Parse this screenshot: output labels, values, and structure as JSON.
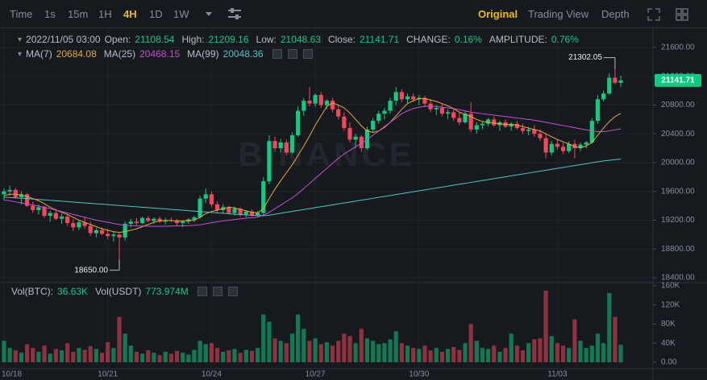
{
  "toolbar": {
    "intervals": [
      "Time",
      "1s",
      "15m",
      "1H",
      "4H",
      "1D",
      "1W"
    ],
    "active": "4H",
    "views": [
      "Original",
      "Trading View",
      "Depth"
    ],
    "active_view": "Original"
  },
  "chart_data": {
    "type": "candlestick",
    "watermark": "BINANCE",
    "up_color": "#0ecb81",
    "down_color": "#f6465d",
    "info": {
      "time": "2022/11/05 03:00",
      "fields": [
        {
          "name": "Open:",
          "value": 21108.54
        },
        {
          "name": "High:",
          "value": 21209.16
        },
        {
          "name": "Low:",
          "value": 21048.63
        },
        {
          "name": "Close:",
          "value": 21141.71
        },
        {
          "name": "CHANGE:",
          "value": {
            "value": 0.16,
            "label": "0.16%"
          }
        },
        {
          "name": "AMPLITUDE:",
          "value": {
            "value": 0.76,
            "label": "0.76%"
          }
        }
      ]
    },
    "categories": [
      "10/18",
      null,
      null,
      null,
      null,
      null,
      null,
      null,
      null,
      null,
      null,
      null,
      null,
      null,
      null,
      null,
      null,
      null,
      "10/21",
      null,
      null,
      null,
      null,
      null,
      null,
      null,
      null,
      null,
      null,
      null,
      null,
      null,
      null,
      null,
      null,
      null,
      "10/24",
      null,
      null,
      null,
      null,
      null,
      null,
      null,
      null,
      null,
      null,
      null,
      null,
      null,
      null,
      null,
      null,
      null,
      "10/27",
      null,
      null,
      null,
      null,
      null,
      null,
      null,
      null,
      null,
      null,
      null,
      null,
      null,
      null,
      null,
      null,
      null,
      "10/30",
      null,
      null,
      null,
      null,
      null,
      null,
      null,
      null,
      null,
      null,
      null,
      null,
      null,
      null,
      null,
      null,
      null,
      null,
      null,
      null,
      null,
      null,
      null,
      "11/03",
      null,
      null,
      null,
      null,
      null,
      null,
      null,
      null,
      null,
      null,
      null
    ],
    "candles": [
      [
        19560,
        19640,
        19480,
        19600
      ],
      [
        19600,
        19680,
        19540,
        19620
      ],
      [
        19620,
        19650,
        19500,
        19520
      ],
      [
        19520,
        19600,
        19420,
        19560
      ],
      [
        19560,
        19580,
        19380,
        19400
      ],
      [
        19400,
        19460,
        19300,
        19340
      ],
      [
        19340,
        19420,
        19280,
        19380
      ],
      [
        19380,
        19400,
        19230,
        19260
      ],
      [
        19260,
        19330,
        19180,
        19300
      ],
      [
        19300,
        19360,
        19200,
        19220
      ],
      [
        19220,
        19290,
        19150,
        19250
      ],
      [
        19250,
        19280,
        19120,
        19160
      ],
      [
        19160,
        19220,
        19050,
        19100
      ],
      [
        19100,
        19200,
        19060,
        19170
      ],
      [
        19170,
        19250,
        19080,
        19120
      ],
      [
        19120,
        19180,
        18980,
        19020
      ],
      [
        19020,
        19090,
        18960,
        19060
      ],
      [
        19060,
        19100,
        18990,
        19010
      ],
      [
        19010,
        19080,
        18940,
        18980
      ],
      [
        18980,
        19040,
        18900,
        19000
      ],
      [
        19000,
        19020,
        18650,
        18960
      ],
      [
        18960,
        19180,
        18920,
        19150
      ],
      [
        19150,
        19220,
        19100,
        19180
      ],
      [
        19180,
        19230,
        19130,
        19160
      ],
      [
        19160,
        19250,
        19140,
        19230
      ],
      [
        19230,
        19260,
        19170,
        19190
      ],
      [
        19190,
        19240,
        19150,
        19220
      ],
      [
        19220,
        19250,
        19160,
        19180
      ],
      [
        19180,
        19230,
        19140,
        19200
      ],
      [
        19200,
        19240,
        19170,
        19190
      ],
      [
        19190,
        19220,
        19120,
        19160
      ],
      [
        19160,
        19200,
        19100,
        19180
      ],
      [
        19180,
        19230,
        19150,
        19210
      ],
      [
        19210,
        19260,
        19170,
        19240
      ],
      [
        19240,
        19540,
        19220,
        19500
      ],
      [
        19500,
        19640,
        19440,
        19560
      ],
      [
        19560,
        19600,
        19380,
        19420
      ],
      [
        19420,
        19460,
        19300,
        19340
      ],
      [
        19340,
        19420,
        19300,
        19380
      ],
      [
        19380,
        19400,
        19280,
        19300
      ],
      [
        19300,
        19390,
        19260,
        19360
      ],
      [
        19360,
        19380,
        19250,
        19280
      ],
      [
        19280,
        19340,
        19240,
        19320
      ],
      [
        19320,
        19350,
        19250,
        19270
      ],
      [
        19270,
        19330,
        19240,
        19300
      ],
      [
        19300,
        19800,
        19280,
        19740
      ],
      [
        19740,
        20380,
        19700,
        20300
      ],
      [
        20300,
        20360,
        20150,
        20200
      ],
      [
        20200,
        20330,
        20140,
        20280
      ],
      [
        20280,
        20320,
        20100,
        20140
      ],
      [
        20140,
        20420,
        20120,
        20380
      ],
      [
        20380,
        20780,
        20360,
        20720
      ],
      [
        20720,
        20900,
        20650,
        20860
      ],
      [
        20860,
        21050,
        20780,
        20820
      ],
      [
        20820,
        20960,
        20780,
        20940
      ],
      [
        20940,
        20980,
        20760,
        20800
      ],
      [
        20800,
        20880,
        20740,
        20860
      ],
      [
        20860,
        20900,
        20700,
        20740
      ],
      [
        20740,
        20800,
        20600,
        20640
      ],
      [
        20640,
        20700,
        20440,
        20480
      ],
      [
        20480,
        20560,
        20280,
        20320
      ],
      [
        20320,
        20400,
        20200,
        20360
      ],
      [
        20360,
        20380,
        20150,
        20200
      ],
      [
        20200,
        20500,
        20180,
        20460
      ],
      [
        20460,
        20620,
        20420,
        20580
      ],
      [
        20580,
        20720,
        20540,
        20680
      ],
      [
        20680,
        20760,
        20600,
        20720
      ],
      [
        20720,
        20900,
        20680,
        20860
      ],
      [
        20860,
        21050,
        20800,
        20980
      ],
      [
        20980,
        21020,
        20840,
        20880
      ],
      [
        20880,
        20960,
        20820,
        20920
      ],
      [
        20920,
        20960,
        20840,
        20880
      ],
      [
        20880,
        20940,
        20800,
        20900
      ],
      [
        20900,
        20930,
        20780,
        20820
      ],
      [
        20820,
        20880,
        20700,
        20740
      ],
      [
        20740,
        20800,
        20660,
        20760
      ],
      [
        20760,
        20820,
        20640,
        20680
      ],
      [
        20680,
        20740,
        20600,
        20700
      ],
      [
        20700,
        20760,
        20580,
        20620
      ],
      [
        20620,
        20700,
        20520,
        20560
      ],
      [
        20560,
        20720,
        20540,
        20680
      ],
      [
        20680,
        20840,
        20420,
        20460
      ],
      [
        20460,
        20560,
        20400,
        20520
      ],
      [
        20520,
        20580,
        20460,
        20540
      ],
      [
        20540,
        20620,
        20500,
        20600
      ],
      [
        20600,
        20640,
        20500,
        20520
      ],
      [
        20520,
        20580,
        20440,
        20560
      ],
      [
        20560,
        20600,
        20480,
        20500
      ],
      [
        20500,
        20560,
        20440,
        20540
      ],
      [
        20540,
        20580,
        20460,
        20480
      ],
      [
        20480,
        20540,
        20400,
        20440
      ],
      [
        20440,
        20500,
        20380,
        20460
      ],
      [
        20460,
        20520,
        20360,
        20400
      ],
      [
        20400,
        20460,
        20300,
        20340
      ],
      [
        20340,
        20400,
        20060,
        20140
      ],
      [
        20140,
        20300,
        20100,
        20260
      ],
      [
        20260,
        20320,
        20180,
        20220
      ],
      [
        20220,
        20280,
        20120,
        20160
      ],
      [
        20160,
        20300,
        20130,
        20260
      ],
      [
        20260,
        20320,
        20060,
        20200
      ],
      [
        20200,
        20280,
        20160,
        20250
      ],
      [
        20250,
        20300,
        20200,
        20280
      ],
      [
        20280,
        20620,
        20260,
        20580
      ],
      [
        20580,
        20940,
        20540,
        20880
      ],
      [
        20880,
        21000,
        20850,
        20960
      ],
      [
        20960,
        21240,
        20940,
        21180
      ],
      [
        21180,
        21302.05,
        21090,
        21108.54
      ],
      [
        21108.54,
        21209.16,
        21048.63,
        21141.71
      ]
    ],
    "ma": [
      {
        "name": "MA(7)",
        "color": "#e6a73c",
        "last": 20684.08,
        "values": [
          19540,
          19560,
          19560,
          19550,
          19530,
          19500,
          19470,
          19430,
          19380,
          19340,
          19310,
          19280,
          19240,
          19200,
          19170,
          19140,
          19110,
          19080,
          19060,
          19040,
          19030,
          19040,
          19060,
          19080,
          19110,
          19140,
          19170,
          19190,
          19195,
          19195,
          19190,
          19190,
          19195,
          19200,
          19240,
          19290,
          19320,
          19340,
          19360,
          19380,
          19370,
          19350,
          19330,
          19310,
          19300,
          19360,
          19500,
          19630,
          19750,
          19860,
          19970,
          20100,
          20230,
          20370,
          20520,
          20650,
          20780,
          20830,
          20800,
          20760,
          20690,
          20600,
          20510,
          20440,
          20420,
          20440,
          20490,
          20560,
          20650,
          20740,
          20820,
          20860,
          20890,
          20890,
          20870,
          20850,
          20820,
          20790,
          20750,
          20700,
          20670,
          20640,
          20600,
          20570,
          20560,
          20550,
          20540,
          20530,
          20530,
          20520,
          20500,
          20480,
          20460,
          20440,
          20400,
          20360,
          20320,
          20290,
          20260,
          20220,
          20210,
          20230,
          20280,
          20380,
          20480,
          20570,
          20640,
          20684.08
        ]
      },
      {
        "name": "MA(25)",
        "color": "#c74fd1",
        "last": 20468.15,
        "values": [
          19480,
          19470,
          19455,
          19440,
          19425,
          19410,
          19395,
          19380,
          19360,
          19340,
          19320,
          19300,
          19280,
          19260,
          19240,
          19220,
          19200,
          19185,
          19170,
          19155,
          19140,
          19130,
          19125,
          19120,
          19118,
          19116,
          19115,
          19115,
          19116,
          19118,
          19120,
          19122,
          19125,
          19128,
          19135,
          19150,
          19165,
          19178,
          19190,
          19200,
          19210,
          19220,
          19228,
          19235,
          19242,
          19270,
          19310,
          19360,
          19410,
          19460,
          19510,
          19570,
          19640,
          19710,
          19780,
          19850,
          19920,
          19990,
          20060,
          20120,
          20170,
          20220,
          20270,
          20320,
          20380,
          20440,
          20500,
          20560,
          20620,
          20680,
          20720,
          20750,
          20770,
          20780,
          20785,
          20780,
          20770,
          20760,
          20750,
          20735,
          20720,
          20700,
          20690,
          20680,
          20670,
          20660,
          20650,
          20640,
          20630,
          20620,
          20610,
          20600,
          20590,
          20575,
          20560,
          20545,
          20530,
          20515,
          20500,
          20485,
          20470,
          20455,
          20440,
          20430,
          20430,
          20440,
          20455,
          20468.15
        ]
      },
      {
        "name": "MA(99)",
        "color": "#4fc3c8",
        "last": 20048.36,
        "values": [
          19520,
          19515,
          19510,
          19505,
          19500,
          19494,
          19488,
          19482,
          19476,
          19470,
          19464,
          19458,
          19452,
          19446,
          19440,
          19434,
          19428,
          19422,
          19416,
          19410,
          19404,
          19398,
          19392,
          19386,
          19380,
          19374,
          19368,
          19362,
          19356,
          19350,
          19344,
          19338,
          19332,
          19326,
          19320,
          19314,
          19308,
          19302,
          19296,
          19290,
          19284,
          19278,
          19272,
          19268,
          19264,
          19262,
          19270,
          19283,
          19296,
          19309,
          19322,
          19335,
          19348,
          19361,
          19374,
          19387,
          19400,
          19413,
          19426,
          19439,
          19452,
          19465,
          19478,
          19491,
          19504,
          19517,
          19530,
          19543,
          19556,
          19569,
          19582,
          19595,
          19608,
          19621,
          19634,
          19647,
          19660,
          19673,
          19686,
          19699,
          19712,
          19725,
          19738,
          19751,
          19764,
          19777,
          19790,
          19803,
          19816,
          19829,
          19842,
          19855,
          19868,
          19881,
          19894,
          19907,
          19920,
          19933,
          19946,
          19959,
          19972,
          19985,
          19998,
          20011,
          20024,
          20032,
          20040,
          20048.36
        ]
      }
    ],
    "ylim": [
      18344,
      21868
    ],
    "yticks": [
      {
        "value": 18400,
        "label": "18400.00"
      },
      {
        "value": 18800,
        "label": "18800.00"
      },
      {
        "value": 19200,
        "label": "19200.00"
      },
      {
        "value": 19600,
        "label": "19600.00"
      },
      {
        "value": 20000,
        "label": "20000.00"
      },
      {
        "value": 20400,
        "label": "20400.00"
      },
      {
        "value": 20800,
        "label": "20800.00"
      },
      {
        "value": 21200,
        "label": "21200.00"
      },
      {
        "value": 21600,
        "label": "21600.00"
      }
    ],
    "last_price": 21141.71,
    "high_mark": 21302.05,
    "low_mark": {
      "value": 18650,
      "label": "18650.00"
    },
    "volume": {
      "name": "Vol(BTC):",
      "last": {
        "value": 36630,
        "label": "36.63K"
      },
      "quote_name": "Vol(USDT)",
      "quote_last": {
        "value": 773974000,
        "label": "773.974M"
      },
      "ylim": [
        -13474,
        165053
      ],
      "yticks": [
        {
          "value": 0,
          "label": "0.00"
        },
        {
          "value": 40000,
          "label": "40K"
        },
        {
          "value": 80000,
          "label": "80K"
        },
        {
          "value": 120000,
          "label": "120K"
        },
        {
          "value": 160000,
          "label": "160K"
        }
      ],
      "values": [
        45000,
        30000,
        25000,
        20000,
        38000,
        30000,
        22000,
        35000,
        18000,
        28000,
        25000,
        40000,
        22000,
        30000,
        26000,
        34000,
        28000,
        20000,
        42000,
        30000,
        95000,
        60000,
        35000,
        22000,
        18000,
        25000,
        20000,
        15000,
        22000,
        18000,
        24000,
        20000,
        16000,
        26000,
        45000,
        38000,
        40000,
        30000,
        22000,
        25000,
        28000,
        20000,
        26000,
        24000,
        30000,
        100000,
        85000,
        50000,
        45000,
        40000,
        60000,
        100000,
        70000,
        45000,
        50000,
        38000,
        42000,
        35000,
        45000,
        60000,
        55000,
        40000,
        70000,
        50000,
        45000,
        38000,
        40000,
        48000,
        65000,
        40000,
        35000,
        30000,
        28000,
        35000,
        25000,
        30000,
        22000,
        28000,
        32000,
        26000,
        40000,
        80000,
        45000,
        30000,
        28000,
        35000,
        22000,
        30000,
        60000,
        35000,
        25000,
        40000,
        48000,
        50000,
        150000,
        55000,
        40000,
        35000,
        30000,
        90000,
        45000,
        30000,
        35000,
        60000,
        40000,
        145000,
        95000,
        36630
      ]
    }
  }
}
